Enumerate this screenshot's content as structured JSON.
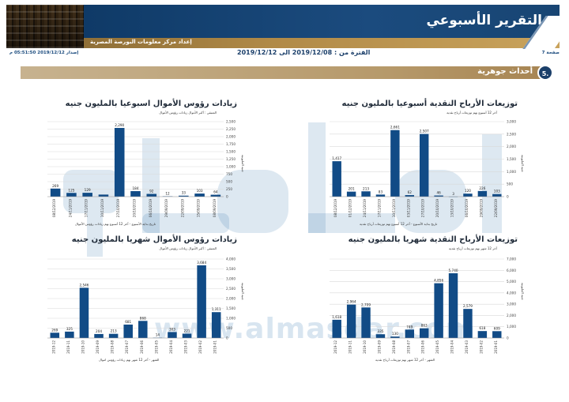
{
  "header": {
    "title": "التقرير الأسبوعي",
    "subtitle": "إعداد مركز معلومات البورصة المصرية"
  },
  "meta": {
    "page": "صفحة 7",
    "period": "الفترة من : 2019/12/08 الى 2019/12/12",
    "issue": "إصدار 2019/12/12 05:51:50 م"
  },
  "section": {
    "number": "5.",
    "title": "أحداث جوهرية"
  },
  "watermark": {
    "url": "www.almasdar.com"
  },
  "charts": [
    {
      "key": "top_left",
      "title": "زيادات رؤوس الأموال اسبوعيا بالمليون جنيه",
      "subtitle": "المتبقي : أكبر الأموال زيادات رؤوس الأموال",
      "ylabel": "جنيه المليونيه",
      "xlabel": "تاريخ بداية الأسبوع - آخر 12 أسبوع بهم زيادات رؤوس الأموال"
    },
    {
      "key": "top_right",
      "title": "توزيعات الأرباح النقدية أسبوعيا بالمليون جنيه",
      "subtitle": "آخر 12 أسبوع بهم توزيعات أرباح نقدية",
      "ylabel": "جنيه المليونيه",
      "xlabel": "تاريخ بداية الأسبوع - آخر 12 أسبوع بهم توزيعات أرباح نقدية"
    },
    {
      "key": "bottom_left",
      "title": "زيادات رؤوس الأموال شهريا بالمليون جنيه",
      "subtitle": "المتبقي : أكبر الأموال زيادات رؤوس الأموال",
      "ylabel": "جنيه المليونيه",
      "xlabel": "الشهر - آخر 12 شهر بهم زيادات رؤوس اموال"
    },
    {
      "key": "bottom_right",
      "title": "توزيعات الأرباح النقدية شهريا بالمليون جنيه",
      "subtitle": "آخر 12 شهر بهم توزيعات أرباح نقدية",
      "ylabel": "جنيه المليونيه",
      "xlabel": "الشهر - آخر 12 شهر بهم توزيعات أرباح نقدية"
    }
  ],
  "colors": {
    "bar": "#114b86",
    "grid": "#d9d9d9",
    "brand": "#1b4b7e",
    "gold": "#b18a47"
  },
  "chart_data": [
    {
      "type": "bar",
      "title": "زيادات رؤوس الأموال اسبوعيا بالمليون جنيه",
      "xlabel": "تاريخ بداية الأسبوع - آخر 12 أسبوع بهم زيادات رؤوس الأموال",
      "ylabel": "جنيه المليونيه",
      "ylim": [
        0,
        2500
      ],
      "yticks": [
        0,
        250,
        500,
        750,
        1000,
        1250,
        1500,
        1750,
        2000,
        2250,
        2500
      ],
      "ytick_labels": [
        "0",
        "250",
        "500",
        "750",
        "1,000",
        "1,250",
        "1,500",
        "1,750",
        "2,000",
        "2,250",
        "2,500"
      ],
      "categories": [
        "08/12/2019",
        "24/11/2019",
        "17/11/2019",
        "10/11/2019",
        "27/10/2019",
        "20/10/2019",
        "06/10/2019",
        "29/09/2019",
        "22/09/2019",
        "15/09/2019",
        "08/09/2019"
      ],
      "values": [
        269,
        125,
        129,
        69,
        2290,
        184,
        92,
        12,
        33,
        103,
        64
      ],
      "value_labels": [
        "269",
        "125",
        "129",
        "",
        "2,290",
        "184",
        "92",
        "12",
        "33",
        "103",
        "64"
      ],
      "grid": true
    },
    {
      "type": "bar",
      "title": "توزيعات الأرباح النقدية أسبوعيا بالمليون جنيه",
      "xlabel": "تاريخ بداية الأسبوع - آخر 12 أسبوع بهم توزيعات أرباح نقدية",
      "ylabel": "جنيه المليونيه",
      "ylim": [
        0,
        3000
      ],
      "yticks": [
        0,
        500,
        1000,
        1500,
        2000,
        2500,
        3000
      ],
      "ytick_labels": [
        "0",
        "500",
        "1,000",
        "1,500",
        "2,000",
        "2,500",
        "3,000"
      ],
      "categories": [
        "08/12/2019",
        "01/12/2019",
        "24/11/2019",
        "17/11/2019",
        "10/11/2019",
        "03/11/2019",
        "27/10/2019",
        "20/10/2019",
        "13/10/2019",
        "06/10/2019",
        "29/09/2019",
        "22/09/2019"
      ],
      "values": [
        1417,
        201,
        213,
        83,
        2661,
        62,
        2507,
        46,
        3,
        120,
        226,
        103
      ],
      "value_labels": [
        "1,417",
        "201",
        "213",
        "83",
        "2,661",
        "62",
        "2,507",
        "46",
        "3",
        "120",
        "226",
        "103"
      ],
      "grid": true
    },
    {
      "type": "bar",
      "title": "زيادات رؤوس الأموال شهريا بالمليون جنيه",
      "xlabel": "الشهر - آخر 12 شهر بهم زيادات رؤوس اموال",
      "ylabel": "جنيه المليونيه",
      "ylim": [
        0,
        4000
      ],
      "yticks": [
        0,
        500,
        1000,
        1500,
        2000,
        2500,
        3000,
        3500,
        4000
      ],
      "ytick_labels": [
        "0",
        "500",
        "1,000",
        "1,500",
        "2,000",
        "2,500",
        "3,000",
        "3,500",
        "4,000"
      ],
      "categories": [
        "2019-12",
        "2019-11",
        "2019-10",
        "2019-09",
        "2019-08",
        "2019-07",
        "2019-06",
        "2019-05",
        "2019-04",
        "2019-03",
        "2019-02",
        "2019-01"
      ],
      "values": [
        269,
        325,
        2546,
        204,
        213,
        681,
        868,
        14,
        303,
        221,
        3684,
        1311
      ],
      "value_labels": [
        "269",
        "325",
        "2,546",
        "204",
        "213",
        "681",
        "868",
        "14",
        "303",
        "221",
        "3,684",
        "1,311"
      ],
      "grid": true
    },
    {
      "type": "bar",
      "title": "توزيعات الأرباح النقدية شهريا بالمليون جنيه",
      "xlabel": "الشهر - آخر 12 شهر بهم توزيعات أرباح نقدية",
      "ylabel": "جنيه المليونيه",
      "ylim": [
        0,
        7000
      ],
      "yticks": [
        0,
        1000,
        2000,
        3000,
        4000,
        5000,
        6000,
        7000
      ],
      "ytick_labels": [
        "0",
        "1,000",
        "2,000",
        "3,000",
        "4,000",
        "5,000",
        "6,000",
        "7,000"
      ],
      "categories": [
        "2019-12",
        "2019-11",
        "2019-10",
        "2019-09",
        "2019-08",
        "2019-07",
        "2019-06",
        "2019-05",
        "2019-04",
        "2019-03",
        "2019-02",
        "2019-01"
      ],
      "values": [
        1618,
        2964,
        2709,
        335,
        130,
        749,
        863,
        4856,
        5740,
        2579,
        618,
        609
      ],
      "value_labels": [
        "1,618",
        "2,964",
        "2,709",
        "335",
        "130",
        "749",
        "863",
        "4,856",
        "5,740",
        "2,579",
        "618",
        "609"
      ],
      "grid": true
    }
  ]
}
